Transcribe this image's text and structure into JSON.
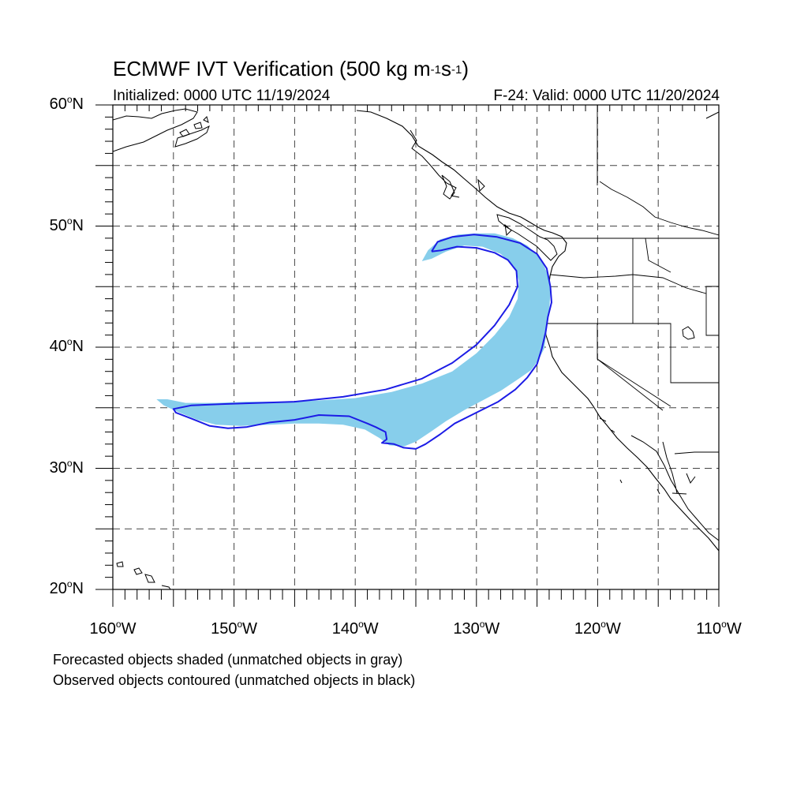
{
  "header": {
    "title_main": "ECMWF IVT Verification (500 kg m",
    "title_exp1": "-1",
    "title_mid": "s",
    "title_exp2": "-1",
    "title_end": ")",
    "initialized": "Initialized: 0000 UTC 11/19/2024",
    "valid": "F-24: Valid: 0000 UTC 11/20/2024"
  },
  "axes": {
    "lon_range": [
      -160,
      -110
    ],
    "lat_range": [
      20,
      60
    ],
    "lat_labels": [
      {
        "value": 60,
        "num": "60",
        "hemi": "N"
      },
      {
        "value": 50,
        "num": "50",
        "hemi": "N"
      },
      {
        "value": 40,
        "num": "40",
        "hemi": "N"
      },
      {
        "value": 30,
        "num": "30",
        "hemi": "N"
      },
      {
        "value": 20,
        "num": "20",
        "hemi": "N"
      }
    ],
    "lon_labels": [
      {
        "value": -160,
        "num": "160",
        "hemi": "W"
      },
      {
        "value": -150,
        "num": "150",
        "hemi": "W"
      },
      {
        "value": -140,
        "num": "140",
        "hemi": "W"
      },
      {
        "value": -130,
        "num": "130",
        "hemi": "W"
      },
      {
        "value": -120,
        "num": "120",
        "hemi": "W"
      },
      {
        "value": -110,
        "num": "110",
        "hemi": "W"
      }
    ],
    "grid_spacing_deg": 5,
    "grid_style": "dashed"
  },
  "legend": {
    "forecast_note": "Forecasted objects shaded (unmatched objects in gray)",
    "observed_note": "Observed objects contoured (unmatched objects in black)"
  },
  "colors": {
    "forecast_fill": "#87ceeb",
    "observed_contour": "#1c1ce6",
    "coast": "#000000",
    "grid": "#444444"
  },
  "forecast_object": [
    [
      -134.5,
      47.1
    ],
    [
      -134.0,
      48.0
    ],
    [
      -133.0,
      48.9
    ],
    [
      -131.5,
      49.3
    ],
    [
      -130.0,
      49.4
    ],
    [
      -128.5,
      49.4
    ],
    [
      -127.0,
      49.0
    ],
    [
      -125.8,
      48.4
    ],
    [
      -124.7,
      47.3
    ],
    [
      -124.1,
      46.0
    ],
    [
      -123.9,
      44.5
    ],
    [
      -124.0,
      43.0
    ],
    [
      -124.2,
      41.5
    ],
    [
      -124.4,
      39.9
    ],
    [
      -124.9,
      38.9
    ],
    [
      -125.5,
      38.1
    ],
    [
      -126.5,
      37.4
    ],
    [
      -128.0,
      36.4
    ],
    [
      -129.5,
      35.6
    ],
    [
      -131.0,
      34.8
    ],
    [
      -132.5,
      33.9
    ],
    [
      -133.8,
      33.0
    ],
    [
      -135.0,
      32.2
    ],
    [
      -136.0,
      31.8
    ],
    [
      -137.2,
      31.9
    ],
    [
      -138.0,
      32.5
    ],
    [
      -139.2,
      33.2
    ],
    [
      -141.0,
      33.6
    ],
    [
      -143.0,
      33.7
    ],
    [
      -145.0,
      33.7
    ],
    [
      -147.0,
      33.6
    ],
    [
      -149.5,
      33.5
    ],
    [
      -151.5,
      33.6
    ],
    [
      -153.0,
      34.0
    ],
    [
      -154.5,
      34.6
    ],
    [
      -155.8,
      35.2
    ],
    [
      -156.4,
      35.7
    ],
    [
      -155.5,
      35.7
    ],
    [
      -154.0,
      35.4
    ],
    [
      -151.5,
      35.4
    ],
    [
      -149.0,
      35.5
    ],
    [
      -146.0,
      35.5
    ],
    [
      -143.0,
      35.6
    ],
    [
      -140.0,
      35.8
    ],
    [
      -137.0,
      36.3
    ],
    [
      -134.5,
      37.0
    ],
    [
      -132.0,
      38.0
    ],
    [
      -130.0,
      39.5
    ],
    [
      -128.5,
      41.0
    ],
    [
      -127.3,
      42.5
    ],
    [
      -126.6,
      44.0
    ],
    [
      -126.5,
      45.5
    ],
    [
      -126.9,
      46.7
    ],
    [
      -128.0,
      47.7
    ],
    [
      -129.5,
      48.3
    ],
    [
      -131.0,
      48.4
    ],
    [
      -132.5,
      47.9
    ],
    [
      -133.7,
      47.3
    ]
  ],
  "observed_contour": [
    [
      -133.7,
      47.9
    ],
    [
      -133.2,
      48.7
    ],
    [
      -132.0,
      49.1
    ],
    [
      -130.2,
      49.3
    ],
    [
      -128.3,
      49.1
    ],
    [
      -126.4,
      48.6
    ],
    [
      -125.0,
      47.7
    ],
    [
      -124.2,
      46.5
    ],
    [
      -123.9,
      45.0
    ],
    [
      -123.8,
      43.7
    ],
    [
      -124.1,
      42.5
    ],
    [
      -124.3,
      41.2
    ],
    [
      -124.6,
      39.9
    ],
    [
      -125.0,
      38.6
    ],
    [
      -125.8,
      37.5
    ],
    [
      -126.8,
      36.5
    ],
    [
      -128.2,
      35.5
    ],
    [
      -130.0,
      34.6
    ],
    [
      -131.8,
      33.7
    ],
    [
      -133.0,
      32.8
    ],
    [
      -134.2,
      32.0
    ],
    [
      -135.0,
      31.6
    ],
    [
      -136.0,
      31.7
    ],
    [
      -136.8,
      32.0
    ],
    [
      -137.8,
      32.1
    ],
    [
      -137.4,
      32.4
    ],
    [
      -137.5,
      33.0
    ],
    [
      -138.3,
      33.4
    ],
    [
      -139.0,
      33.7
    ],
    [
      -140.5,
      34.3
    ],
    [
      -143.0,
      34.4
    ],
    [
      -145.0,
      34.0
    ],
    [
      -147.0,
      33.8
    ],
    [
      -149.0,
      33.4
    ],
    [
      -150.5,
      33.3
    ],
    [
      -152.0,
      33.5
    ],
    [
      -153.5,
      34.1
    ],
    [
      -154.8,
      34.6
    ],
    [
      -155.0,
      34.9
    ],
    [
      -153.5,
      35.2
    ],
    [
      -151.0,
      35.3
    ],
    [
      -148.0,
      35.4
    ],
    [
      -145.0,
      35.5
    ],
    [
      -141.0,
      35.9
    ],
    [
      -137.5,
      36.5
    ],
    [
      -134.5,
      37.4
    ],
    [
      -132.0,
      38.7
    ],
    [
      -130.0,
      40.2
    ],
    [
      -128.5,
      41.8
    ],
    [
      -127.3,
      43.5
    ],
    [
      -126.6,
      45.0
    ],
    [
      -126.7,
      46.3
    ],
    [
      -127.4,
      47.2
    ],
    [
      -128.5,
      47.8
    ],
    [
      -130.0,
      48.2
    ],
    [
      -131.6,
      48.3
    ],
    [
      -132.9,
      48.0
    ]
  ]
}
